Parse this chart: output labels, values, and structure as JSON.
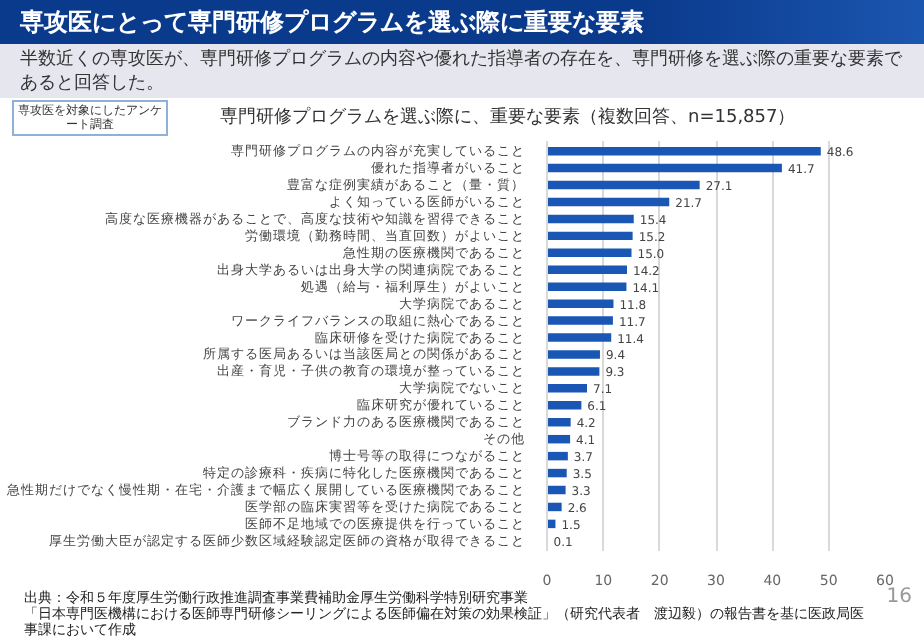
{
  "chart_data": {
    "type": "bar",
    "orientation": "horizontal",
    "title": "専攻医にとって専門研修プログラムを選ぶ際に重要な要素",
    "subtitle": "半数近くの専攻医が、専門研修プログラムの内容や優れた指導者の存在を、専門研修を選ぶ際の重要な要素であると回答した。",
    "annotations": [
      "専攻医を対象にしたアンケート調査",
      "専門研修プログラムを選ぶ際に、重要な要素（複数回答、n=15,857）",
      "出典：令和５年度厚生労働行政推進調査事業費補助金厚生労働科学特別研究事業",
      "「日本専門医機構における医師専門研修シーリングによる医師偏在対策の効果検証」（研究代表者　渡辺毅）の報告書を基に医政局医事課において作成",
      "16"
    ],
    "categories": [
      "専門研修プログラムの内容が充実していること",
      "優れた指導者がいること",
      "豊富な症例実績があること（量・質）",
      "よく知っている医師がいること",
      "高度な医療機器があることで、高度な技術や知識を習得できること",
      "労働環境（勤務時間、当直回数）がよいこと",
      "急性期の医療機関であること",
      "出身大学あるいは出身大学の関連病院であること",
      "処遇（給与・福利厚生）がよいこと",
      "大学病院であること",
      "ワークライフバランスの取組に熱心であること",
      "臨床研修を受けた病院であること",
      "所属する医局あるいは当該医局との関係があること",
      "出産・育児・子供の教育の環境が整っていること",
      "大学病院でないこと",
      "臨床研究が優れていること",
      "ブランド力のある医療機関であること",
      "その他",
      "博士号等の取得につながること",
      "特定の診療科・疾病に特化した医療機関であること",
      "急性期だけでなく慢性期・在宅・介護まで幅広く展開している医療機関であること",
      "医学部の臨床実習等を受けた病院であること",
      "医師不足地域での医療提供を行っていること",
      "厚生労働大臣が認定する医師少数区域経験認定医師の資格が取得できること"
    ],
    "values": [
      48.6,
      41.7,
      27.1,
      21.7,
      15.4,
      15.2,
      15.0,
      14.2,
      14.1,
      11.8,
      11.7,
      11.4,
      9.4,
      9.3,
      7.1,
      6.1,
      4.2,
      4.1,
      3.7,
      3.5,
      3.3,
      2.6,
      1.5,
      0.1
    ],
    "color": "#1a56b4",
    "xlim": [
      0,
      60
    ],
    "xticks": [
      0,
      10,
      20,
      30,
      40,
      50,
      60
    ],
    "value_labels": [
      "48.6",
      "41.7",
      "27.1",
      "21.7",
      "15.4",
      "15.2",
      "15.0",
      "14.2",
      "14.1",
      "11.8",
      "11.7",
      "11.4",
      "9.4",
      "9.3",
      "7.1",
      "6.1",
      "4.2",
      "4.1",
      "3.7",
      "3.5",
      "3.3",
      "2.6",
      "1.5",
      "0.1"
    ],
    "grid": "x"
  }
}
